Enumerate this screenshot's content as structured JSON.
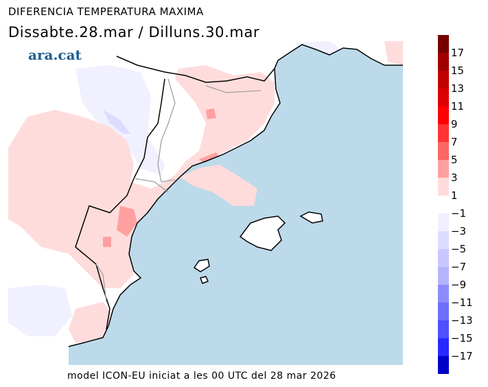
{
  "header": {
    "title": "DIFERENCIA TEMPERATURA MAXIMA",
    "subtitle": "Dissabte.28.mar / Dilluns.30.mar"
  },
  "logo": "ara.cat",
  "footer": "model ICON-EU iniciat a les 00 UTC del 28 mar 2026",
  "colors": {
    "sea": "#bcdaea",
    "land": "#ffffff",
    "pink_light": "#ffdcdc",
    "pink": "#ffa0a0",
    "blue_light": "#f0f0ff",
    "coast": "#000000",
    "border": "#a0a0a0"
  },
  "colorbar": {
    "positive": {
      "labels": [
        "17",
        "15",
        "13",
        "11",
        "9",
        "7",
        "5",
        "3",
        "1"
      ],
      "colors": [
        "#780000",
        "#a00000",
        "#c00000",
        "#dc0000",
        "#ff0000",
        "#ff3333",
        "#ff6666",
        "#ffa0a0",
        "#ffdcdc"
      ]
    },
    "negative": {
      "labels": [
        "−1",
        "−3",
        "−5",
        "−7",
        "−9",
        "−11",
        "−13",
        "−15",
        "−17"
      ],
      "colors": [
        "#f0f0ff",
        "#dcdcff",
        "#c8c8ff",
        "#b4b4ff",
        "#8c8cff",
        "#6e6eff",
        "#5050ff",
        "#2828ff",
        "#0000c8"
      ]
    }
  }
}
